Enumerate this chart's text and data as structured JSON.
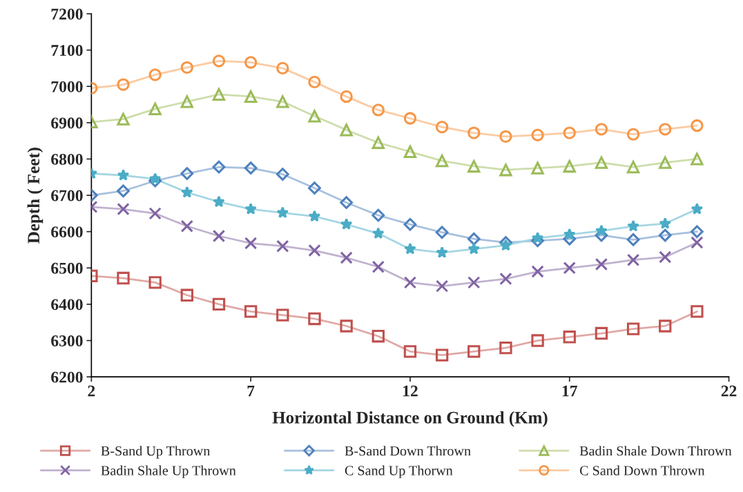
{
  "chart_data": {
    "type": "line",
    "xlabel": "Horizontal Distance on Ground (Km)",
    "ylabel": "Depth ( Feet)",
    "x": [
      2,
      3,
      4,
      5,
      6,
      7,
      8,
      9,
      10,
      11,
      12,
      13,
      14,
      15,
      16,
      17,
      18,
      19,
      20,
      21
    ],
    "xlim": [
      2,
      22
    ],
    "xticks": [
      2,
      7,
      12,
      17,
      22
    ],
    "ylim": [
      6200,
      7200
    ],
    "yticks": [
      6200,
      6300,
      6400,
      6500,
      6600,
      6700,
      6800,
      6900,
      7000,
      7100,
      7200
    ],
    "grid": false,
    "legend": "bottom",
    "series": [
      {
        "name": "B-Sand Up Thrown",
        "color": "#c0504d",
        "marker": "square",
        "values": [
          6478,
          6472,
          6460,
          6425,
          6400,
          6380,
          6370,
          6360,
          6340,
          6312,
          6270,
          6260,
          6270,
          6280,
          6300,
          6310,
          6320,
          6332,
          6340,
          6380
        ]
      },
      {
        "name": "B-Sand Down Thrown",
        "color": "#4f81bd",
        "marker": "diamond",
        "values": [
          6700,
          6712,
          6740,
          6760,
          6778,
          6775,
          6758,
          6720,
          6680,
          6645,
          6620,
          6598,
          6580,
          6570,
          6575,
          6580,
          6590,
          6578,
          6590,
          6600
        ]
      },
      {
        "name": "Badin Shale Down Thrown",
        "color": "#9bbb59",
        "marker": "triangle",
        "values": [
          6902,
          6910,
          6938,
          6958,
          6978,
          6972,
          6958,
          6918,
          6880,
          6845,
          6820,
          6795,
          6780,
          6770,
          6775,
          6780,
          6790,
          6778,
          6790,
          6800
        ]
      },
      {
        "name": "Badin Shale Up Thrown",
        "color": "#8064a2",
        "marker": "cross",
        "values": [
          6668,
          6662,
          6650,
          6615,
          6588,
          6568,
          6560,
          6548,
          6528,
          6503,
          6460,
          6450,
          6460,
          6470,
          6490,
          6500,
          6510,
          6522,
          6530,
          6570
        ]
      },
      {
        "name": "C Sand Up Thorwn",
        "color": "#4bacc6",
        "marker": "star",
        "values": [
          6760,
          6755,
          6745,
          6708,
          6682,
          6662,
          6652,
          6642,
          6620,
          6595,
          6552,
          6542,
          6552,
          6562,
          6582,
          6592,
          6602,
          6615,
          6622,
          6662
        ]
      },
      {
        "name": "C Sand Down Thrown",
        "color": "#f79646",
        "marker": "circle",
        "values": [
          6995,
          7005,
          7032,
          7052,
          7070,
          7066,
          7050,
          7012,
          6972,
          6935,
          6912,
          6888,
          6872,
          6862,
          6866,
          6872,
          6882,
          6868,
          6882,
          6892
        ]
      }
    ]
  }
}
